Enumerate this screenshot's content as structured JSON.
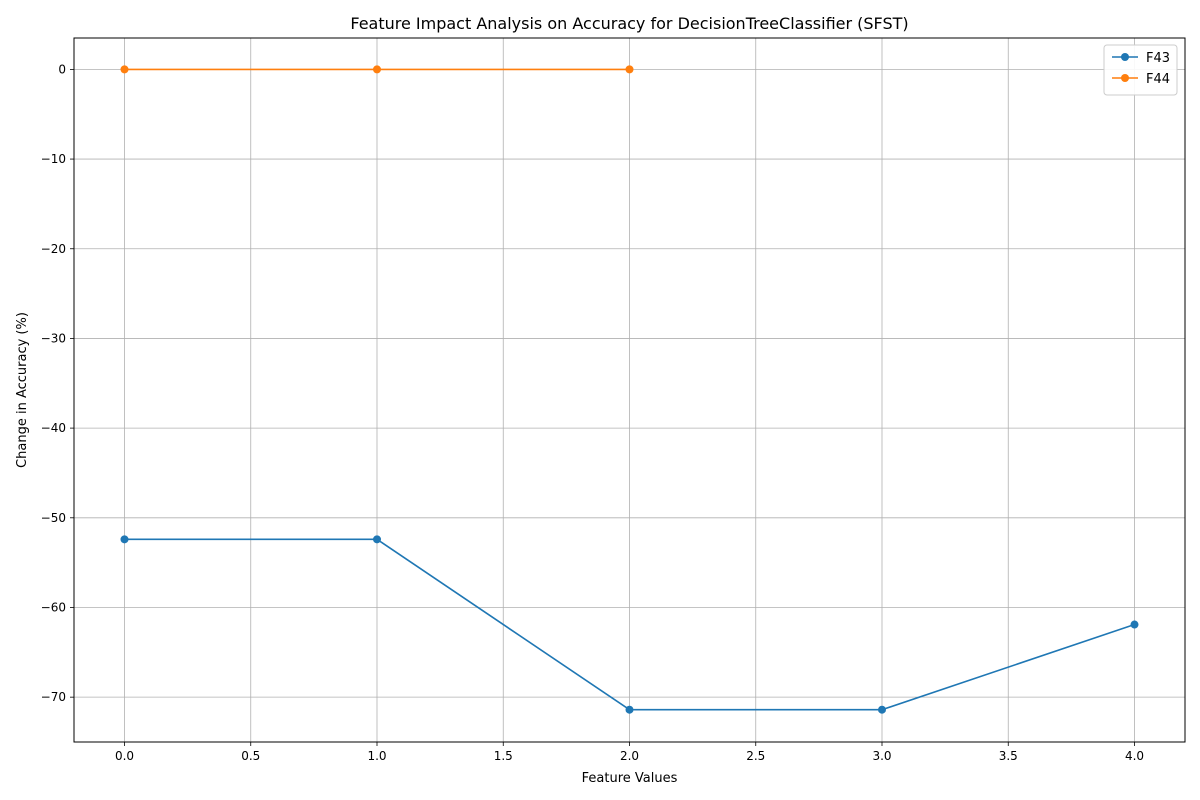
{
  "chart_data": {
    "type": "line",
    "title": "Feature Impact Analysis on Accuracy for DecisionTreeClassifier (SFST)",
    "xlabel": "Feature Values",
    "ylabel": "Change in Accuracy (%)",
    "xlim": [
      -0.2,
      4.2
    ],
    "ylim": [
      -75,
      3.5
    ],
    "xticks": [
      0.0,
      0.5,
      1.0,
      1.5,
      2.0,
      2.5,
      3.0,
      3.5,
      4.0
    ],
    "xtick_labels": [
      "0.0",
      "0.5",
      "1.0",
      "1.5",
      "2.0",
      "2.5",
      "3.0",
      "3.5",
      "4.0"
    ],
    "yticks": [
      0,
      -10,
      -20,
      -30,
      -40,
      -50,
      -60,
      -70
    ],
    "ytick_labels": [
      "0",
      "−10",
      "−20",
      "−30",
      "−40",
      "−50",
      "−60",
      "−70"
    ],
    "grid": true,
    "legend_position": "top-right",
    "series": [
      {
        "name": "F43",
        "color": "#1f77b4",
        "x": [
          0,
          1,
          2,
          3,
          4
        ],
        "y": [
          -52.4,
          -52.4,
          -71.4,
          -71.4,
          -61.9
        ]
      },
      {
        "name": "F44",
        "color": "#ff7f0e",
        "x": [
          0,
          1,
          2
        ],
        "y": [
          0,
          0,
          0
        ]
      }
    ]
  }
}
